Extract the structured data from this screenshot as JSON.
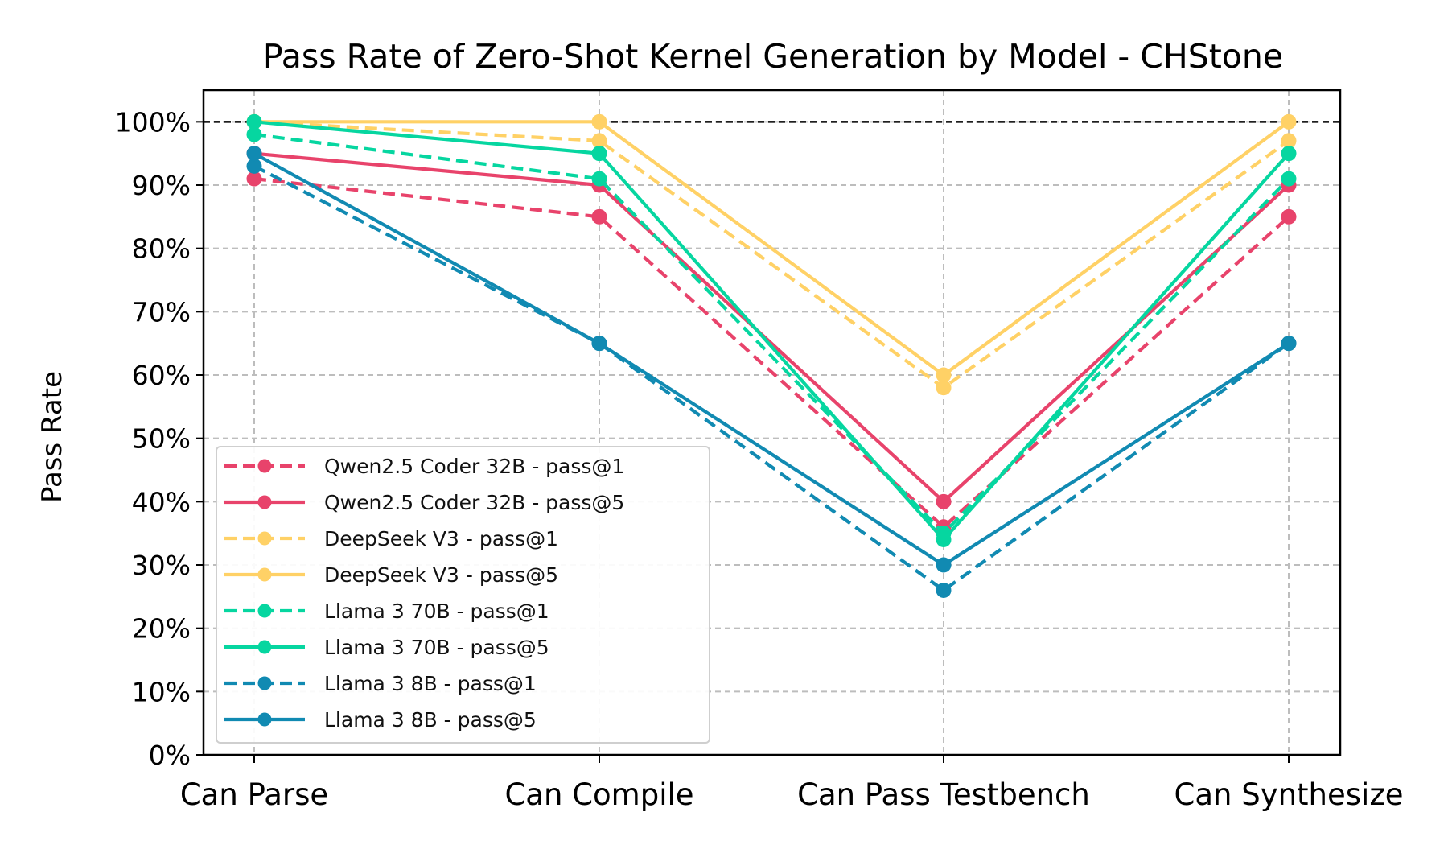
{
  "chart_data": {
    "type": "line",
    "title": "Pass Rate of Zero-Shot Kernel Generation by Model - CHStone",
    "xlabel": "",
    "ylabel": "Pass Rate",
    "categories": [
      "Can Parse",
      "Can Compile",
      "Can Pass Testbench",
      "Can Synthesize"
    ],
    "ylim": [
      0,
      105
    ],
    "yticks": [
      0,
      10,
      20,
      30,
      40,
      50,
      60,
      70,
      80,
      90,
      100
    ],
    "ytick_labels": [
      "0%",
      "10%",
      "20%",
      "30%",
      "40%",
      "50%",
      "60%",
      "70%",
      "80%",
      "90%",
      "100%"
    ],
    "reference_line": 100,
    "grid": true,
    "legend_position": "lower-left",
    "series": [
      {
        "name": "Qwen2.5 Coder 32B - pass@1",
        "values": [
          91,
          85,
          36,
          85
        ],
        "color": "#E8436B",
        "dash": true
      },
      {
        "name": "Qwen2.5 Coder 32B - pass@5",
        "values": [
          95,
          90,
          40,
          90
        ],
        "color": "#E8436B",
        "dash": false
      },
      {
        "name": "DeepSeek V3 - pass@1",
        "values": [
          100,
          97,
          58,
          97
        ],
        "color": "#FFD166",
        "dash": true
      },
      {
        "name": "DeepSeek V3 - pass@5",
        "values": [
          100,
          100,
          60,
          100
        ],
        "color": "#FFD166",
        "dash": false
      },
      {
        "name": "Llama 3 70B - pass@1",
        "values": [
          98,
          91,
          35,
          91
        ],
        "color": "#06D6A0",
        "dash": true
      },
      {
        "name": "Llama 3 70B - pass@5",
        "values": [
          100,
          95,
          34,
          95
        ],
        "color": "#06D6A0",
        "dash": false
      },
      {
        "name": "Llama 3 8B - pass@1",
        "values": [
          93,
          65,
          26,
          65
        ],
        "color": "#118AB2",
        "dash": true
      },
      {
        "name": "Llama 3 8B - pass@5",
        "values": [
          95,
          65,
          30,
          65
        ],
        "color": "#118AB2",
        "dash": false
      }
    ]
  }
}
